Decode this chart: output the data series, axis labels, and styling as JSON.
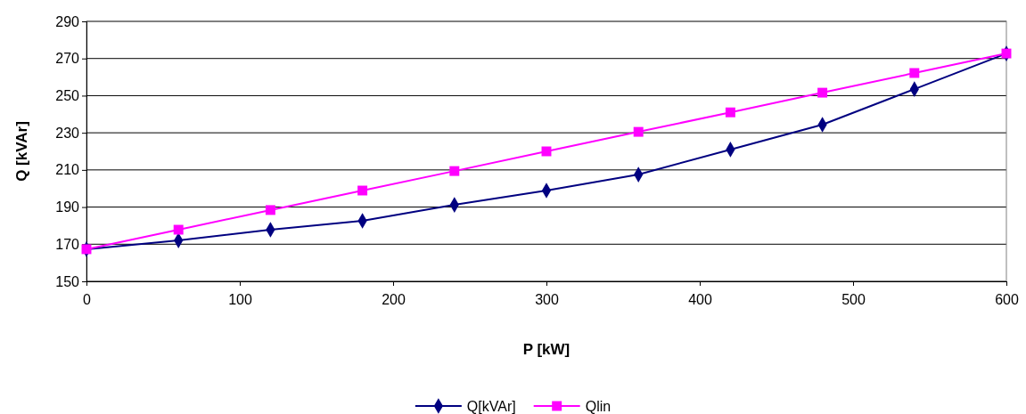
{
  "chart_data": {
    "type": "line",
    "xlabel": "P [kW]",
    "ylabel": "Q [kVAr]",
    "x": [
      0,
      60,
      120,
      180,
      240,
      300,
      360,
      420,
      480,
      540,
      600
    ],
    "xlim": [
      0,
      600
    ],
    "xticks": [
      0,
      100,
      200,
      300,
      400,
      500,
      600
    ],
    "ylim": [
      150,
      290
    ],
    "yticks": [
      150,
      170,
      190,
      210,
      230,
      250,
      270,
      290
    ],
    "grid": "y",
    "legend": "bottom",
    "series": [
      {
        "name": "Q[kVAr]",
        "color": "#000080",
        "marker": "diamond",
        "values": [
          167.3,
          172,
          177.8,
          182.6,
          191.2,
          198.9,
          207.5,
          221,
          234.4,
          253.5,
          272.7
        ]
      },
      {
        "name": "Qlin",
        "color": "#ff00ff",
        "marker": "square",
        "values": [
          167.3,
          177.8,
          188.4,
          198.9,
          209.4,
          220,
          230.5,
          241,
          251.6,
          262.2,
          272.7
        ]
      }
    ]
  }
}
